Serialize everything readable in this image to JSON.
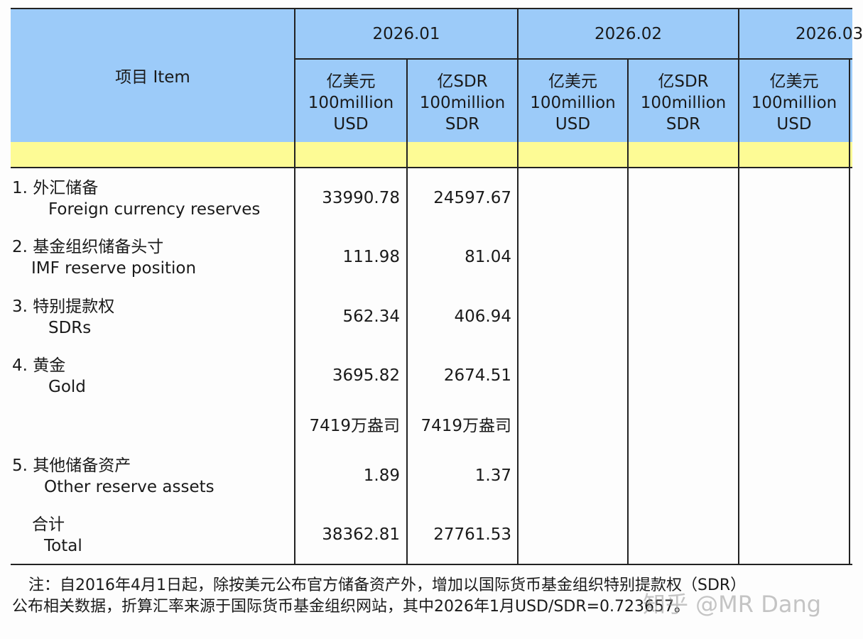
{
  "table": {
    "item_header": "项目  Item",
    "periods": [
      "2026.01",
      "2026.02",
      "2026.03"
    ],
    "units": {
      "usd": [
        "亿美元",
        "100million",
        "USD"
      ],
      "sdr": [
        "亿SDR",
        "100million",
        "SDR"
      ]
    },
    "rows": [
      {
        "zh": "1. 外汇储备",
        "en": "Foreign currency reserves",
        "usd": "33990.78",
        "sdr": "24597.67"
      },
      {
        "zh": "2. 基金组织储备头寸",
        "en": "IMF reserve position",
        "usd": "111.98",
        "sdr": "81.04"
      },
      {
        "zh": "3. 特别提款权",
        "en": "SDRs",
        "usd": "562.34",
        "sdr": "406.94"
      },
      {
        "zh": "4. 黄金",
        "en": "Gold",
        "usd": "3695.82",
        "sdr": "2674.51"
      },
      {
        "zh": "",
        "en": "",
        "usd": "7419万盎司",
        "sdr": "7419万盎司"
      },
      {
        "zh": "5. 其他储备资产",
        "en": "Other reserve assets",
        "usd": "1.89",
        "sdr": "1.37"
      },
      {
        "zh": "合计",
        "en": "Total",
        "usd": "38362.81",
        "sdr": "27761.53"
      }
    ]
  },
  "note": {
    "line1": "注：自2016年4月1日起，除按美元公布官方储备资产外，增加以国际货币基金组织特别提款权（SDR）",
    "line2": "公布相关数据，折算汇率来源于国际货币基金组织网站，其中2026年1月USD/SDR=0.723657。"
  },
  "watermark": "知乎 @MR Dang",
  "colors": {
    "header": "#9ccbf9",
    "subheader": "#fdfb95"
  }
}
